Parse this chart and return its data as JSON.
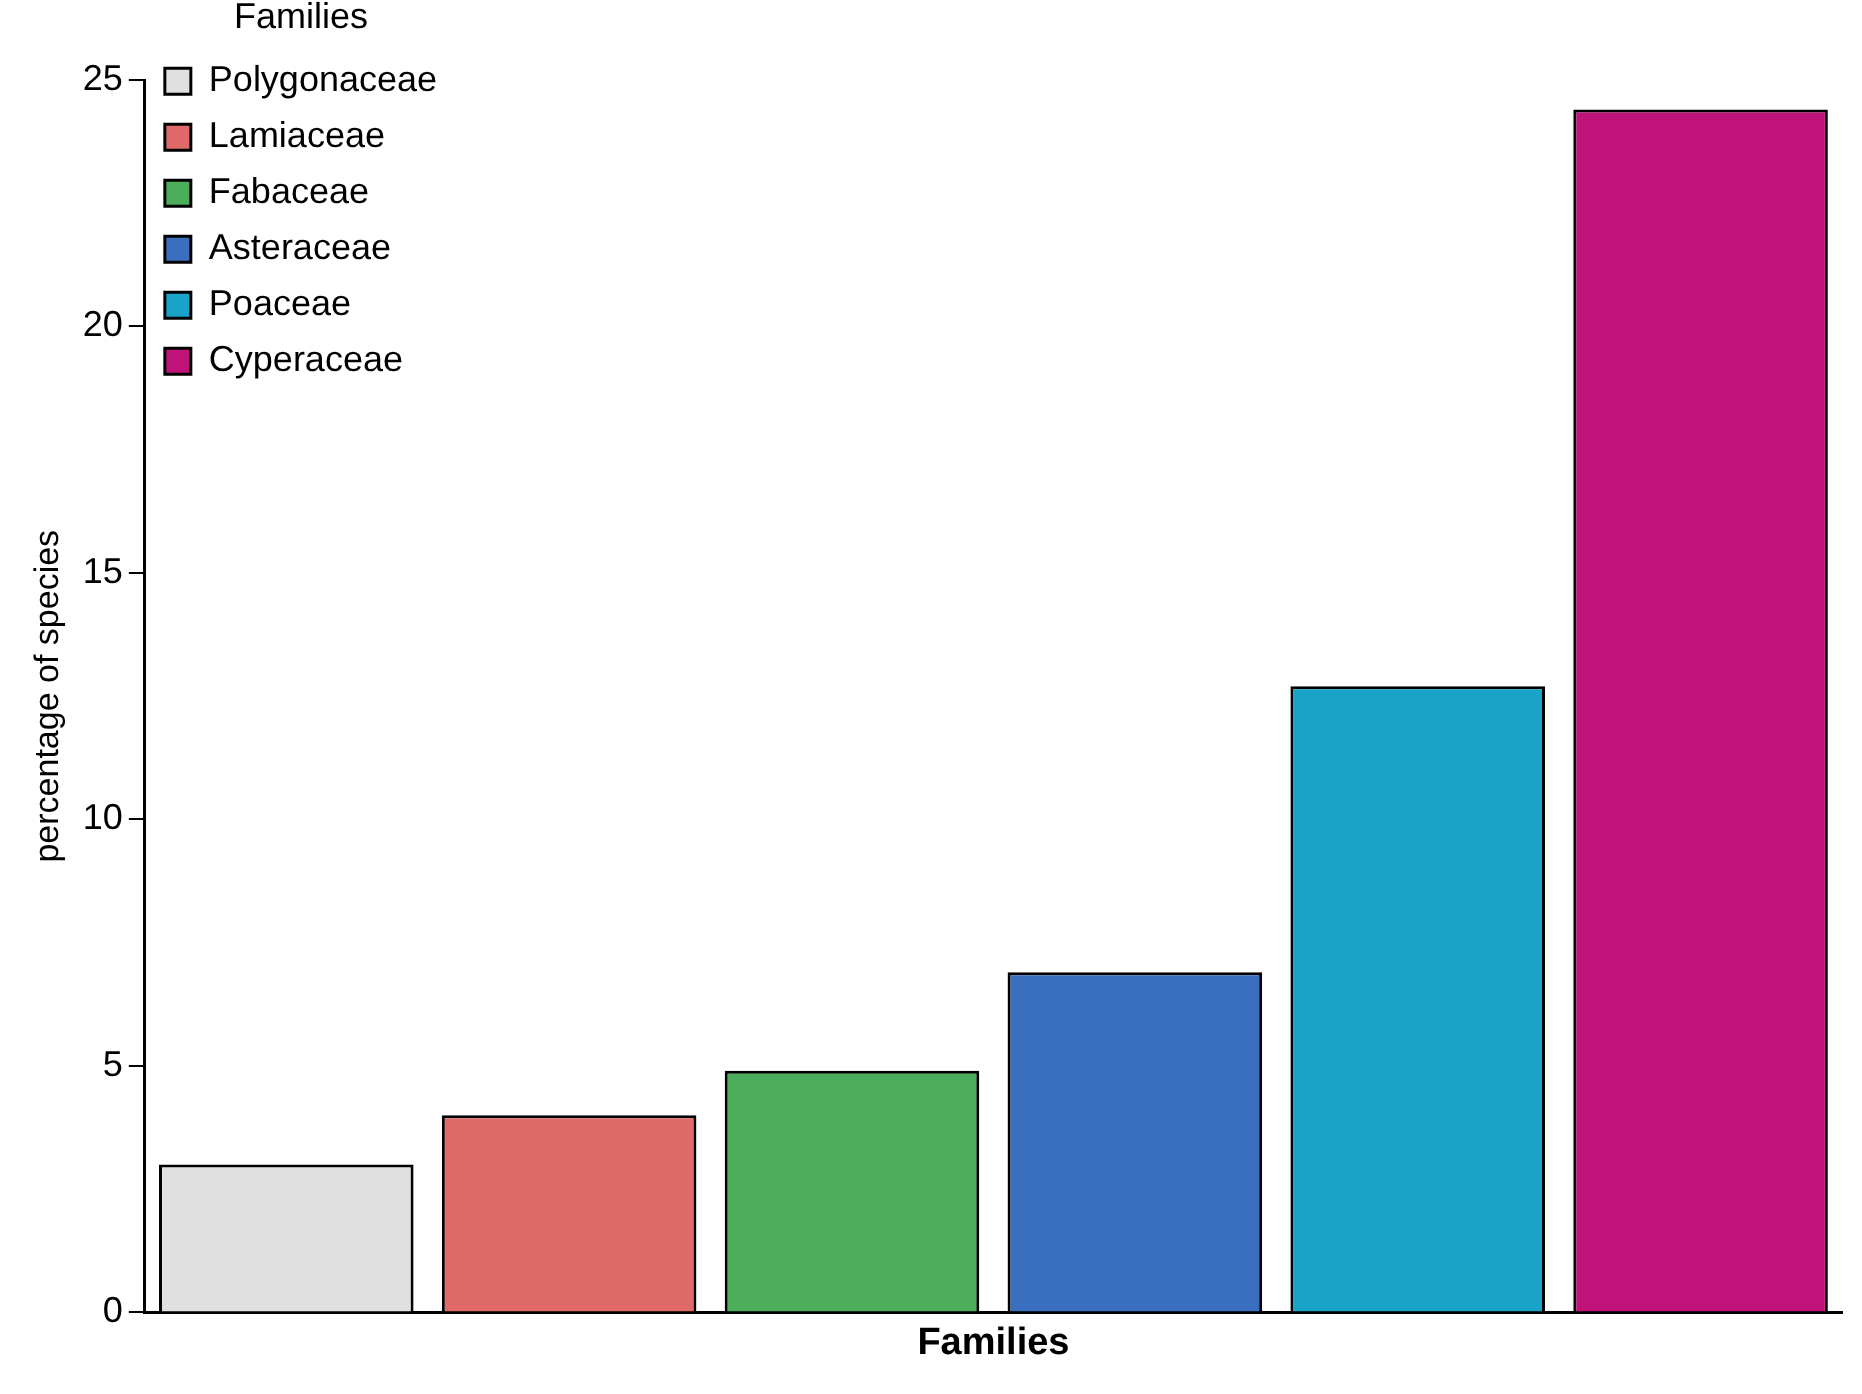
{
  "chart_data": {
    "type": "bar",
    "xlabel": "Families",
    "ylabel": "percentage of species",
    "legend_title": "Families",
    "categories": [
      null,
      null,
      null,
      null,
      null,
      null
    ],
    "series": [
      {
        "name": "Polygonaceae",
        "color": "#e0e0e0",
        "values": [
          3.0,
          null,
          null,
          null,
          null,
          null
        ]
      },
      {
        "name": "Lamiaceae",
        "color": "#e06a6a",
        "values": [
          null,
          4.0,
          null,
          null,
          null,
          null
        ]
      },
      {
        "name": "Fabaceae",
        "color": "#4cae5a",
        "values": [
          null,
          null,
          4.9,
          null,
          null,
          null
        ]
      },
      {
        "name": "Asteraceae",
        "color": "#3a6fc0",
        "values": [
          null,
          null,
          null,
          6.9,
          null,
          null
        ]
      },
      {
        "name": "Poaceae",
        "color": "#1aa3c8",
        "values": [
          null,
          null,
          null,
          null,
          12.7,
          null
        ]
      },
      {
        "name": "Cyperaceae",
        "color": "#c0137a",
        "values": [
          null,
          null,
          null,
          null,
          null,
          24.4
        ]
      }
    ],
    "stacked": true,
    "ylim": [
      0,
      25
    ],
    "yticks": [
      0,
      5,
      10,
      15,
      20,
      25
    ],
    "grid": false,
    "tick_labels": "y",
    "legend": "top left"
  }
}
